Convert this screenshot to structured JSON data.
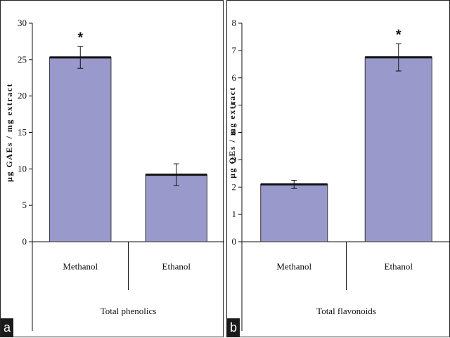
{
  "chart_data": [
    {
      "type": "bar",
      "panel_tag": "a",
      "ylabel": "µg GAEs / mg extract",
      "group_label": "Total phenolics",
      "categories": [
        "Methanol",
        "Ethanol"
      ],
      "values": [
        25.3,
        9.2
      ],
      "errors": [
        1.5,
        1.5
      ],
      "significance": [
        "*",
        ""
      ],
      "ylim": [
        0,
        30
      ],
      "yticks": [
        0,
        5,
        10,
        15,
        20,
        25,
        30
      ],
      "bar_color": "#9999cc",
      "grid": false
    },
    {
      "type": "bar",
      "panel_tag": "b",
      "ylabel": "µg QEs / mg extract",
      "group_label": "Total flavonoids",
      "categories": [
        "Methanol",
        "Ethanol"
      ],
      "values": [
        2.1,
        6.75
      ],
      "errors": [
        0.15,
        0.5
      ],
      "significance": [
        "",
        "*"
      ],
      "ylim": [
        0,
        8
      ],
      "yticks": [
        0,
        1,
        2,
        3,
        4,
        5,
        6,
        7,
        8
      ],
      "bar_color": "#9999cc",
      "grid": false
    }
  ]
}
